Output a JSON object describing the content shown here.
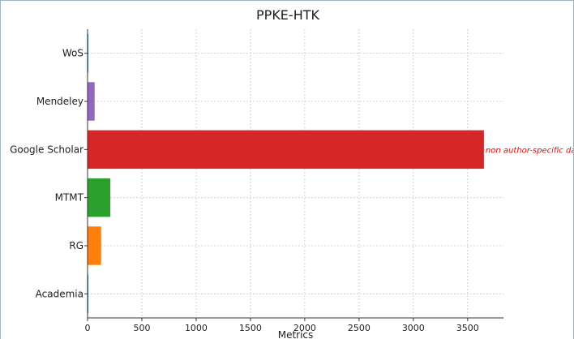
{
  "chart_data": {
    "type": "bar",
    "orientation": "horizontal",
    "title": "PPKE-HTK",
    "xlabel": "Metrics",
    "ylabel": "",
    "categories": [
      "WoS",
      "Mendeley",
      "Google Scholar",
      "MTMT",
      "RG",
      "Academia"
    ],
    "values": [
      0,
      65,
      3650,
      210,
      125,
      5
    ],
    "colors": [
      "#1f77b4",
      "#9467bd",
      "#d62728",
      "#2ca02c",
      "#ff7f0e",
      "#1f77b4"
    ],
    "xlim": [
      0,
      3830
    ],
    "xticks": [
      0,
      500,
      1000,
      1500,
      2000,
      2500,
      3000,
      3500
    ],
    "xtick_labels": [
      "0",
      "500",
      "1000",
      "1500",
      "2000",
      "2500",
      "3000",
      "3500"
    ],
    "grid": true,
    "annotations": [
      {
        "category": "Google Scholar",
        "text": "non author-specific da",
        "color": "#ff0000"
      }
    ]
  }
}
